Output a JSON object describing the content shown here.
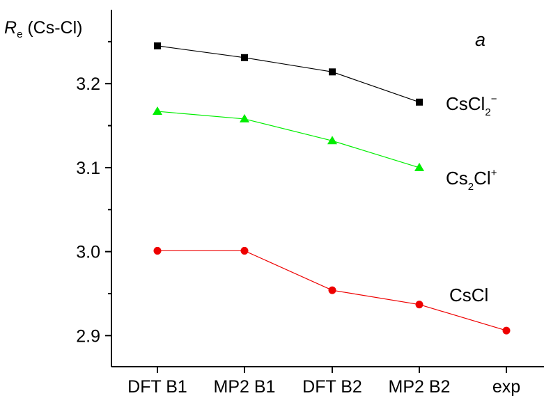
{
  "chart_data": {
    "type": "line",
    "categories": [
      "DFT B1",
      "MP2 B1",
      "DFT B2",
      "MP2 B2",
      "exp"
    ],
    "ylabel": {
      "main": "R",
      "sub": "e",
      "rest": " (Cs-Cl)"
    },
    "ylim": [
      2.863,
      3.288
    ],
    "yticks": [
      "2.9",
      "3.0",
      "3.1",
      "3.2"
    ],
    "panel_label": "a",
    "grid": false,
    "series": [
      {
        "name": "CsCl2⁻",
        "label": {
          "base": "CsCl",
          "sub": "2",
          "sup": "−"
        },
        "color": "#000000",
        "marker": "square",
        "values": [
          3.245,
          3.231,
          3.214,
          3.178,
          null
        ]
      },
      {
        "name": "Cs2Cl⁺",
        "label": {
          "base": "Cs",
          "sub": "2",
          "after": "Cl",
          "sup": "+"
        },
        "color": "#00ee00",
        "marker": "triangle",
        "values": [
          3.167,
          3.158,
          3.132,
          3.1,
          null
        ]
      },
      {
        "name": "CsCl",
        "label": {
          "base": "CsCl"
        },
        "color": "#ee0000",
        "marker": "circle",
        "values": [
          3.001,
          3.001,
          2.954,
          2.937,
          2.906
        ]
      }
    ]
  }
}
